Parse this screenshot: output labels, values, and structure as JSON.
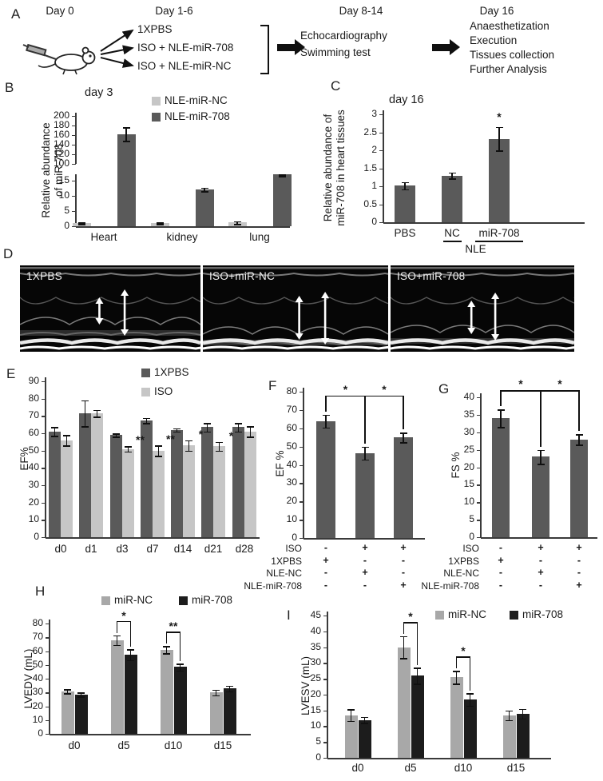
{
  "colors": {
    "dark_gray": "#5a5a5a",
    "light_gray": "#c6c6c6",
    "mid_gray": "#a8a8a8",
    "near_black": "#1c1c1c",
    "error_bar": "#101010"
  },
  "panels": {
    "A": {
      "label": "A",
      "timeline": [
        "Day 0",
        "Day 1-6",
        "Day 8-14",
        "Day 16"
      ],
      "branches": [
        "1XPBS",
        "ISO + NLE-miR-708",
        "ISO + NLE-miR-NC"
      ],
      "week2": [
        "Echocardiography",
        "Swimming test"
      ],
      "day16": [
        "Anaesthetization",
        "Execution",
        "Tissues collection",
        "Further Analysis"
      ]
    },
    "B": {
      "label": "B"
    },
    "C": {
      "label": "C"
    },
    "D": {
      "label": "D",
      "images": [
        {
          "label": "1XPBS"
        },
        {
          "label": "ISO+miR-NC"
        },
        {
          "label": "ISO+miR-708"
        }
      ]
    },
    "E": {
      "label": "E"
    },
    "F": {
      "label": "F"
    },
    "G": {
      "label": "G"
    },
    "H": {
      "label": "H"
    },
    "I": {
      "label": "I"
    }
  },
  "chart_data": [
    {
      "panel": "B",
      "type": "bar",
      "title": "day 3",
      "ylabel": [
        "Relative abundance",
        "of miR-708"
      ],
      "categories": [
        "Heart",
        "kidney",
        "lung"
      ],
      "series": [
        {
          "name": "NLE-miR-NC",
          "color": "light_gray",
          "values": [
            1,
            1,
            1.2
          ],
          "err": [
            0.3,
            0.3,
            0.5
          ]
        },
        {
          "name": "NLE-miR-708",
          "color": "dark_gray",
          "values": [
            162,
            12,
            17
          ],
          "err": [
            14,
            0.6,
            0.5
          ]
        }
      ],
      "axis_break": {
        "lower_range": [
          0,
          17
        ],
        "lower_ticks": [
          0,
          5,
          10,
          15
        ],
        "upper_range": [
          100,
          200
        ],
        "upper_ticks": [
          100,
          120,
          140,
          160,
          180,
          200
        ]
      },
      "legend": [
        "NLE-miR-NC",
        "NLE-miR-708"
      ]
    },
    {
      "panel": "C",
      "type": "bar",
      "title": "day 16",
      "ylabel": [
        "Relative abundance of",
        "miR-708 in heart tissues"
      ],
      "categories": [
        "PBS",
        "NC",
        "miR-708"
      ],
      "series": [
        {
          "name": "",
          "color": "dark_gray",
          "values": [
            1.02,
            1.3,
            2.32
          ],
          "err": [
            0.1,
            0.08,
            0.33
          ]
        }
      ],
      "ylim": [
        0,
        3
      ],
      "yticks": [
        0,
        0.5,
        1,
        1.5,
        2,
        2.5,
        3
      ],
      "sig_stars": [
        {
          "cat": "miR-708",
          "series": 0,
          "text": "*"
        }
      ],
      "group_label": {
        "text": "NLE",
        "from": 1,
        "to": 2
      }
    },
    {
      "panel": "E",
      "type": "bar",
      "ylabel": [
        "EF%"
      ],
      "categories": [
        "d0",
        "d1",
        "d3",
        "d7",
        "d14",
        "d21",
        "d28"
      ],
      "series": [
        {
          "name": "1XPBS",
          "color": "dark_gray",
          "values": [
            61,
            71.5,
            59,
            67.5,
            62,
            63.5,
            63.5
          ],
          "err": [
            2.5,
            7.5,
            1,
            1.5,
            1,
            2.5,
            2.5
          ]
        },
        {
          "name": "ISO",
          "color": "light_gray",
          "values": [
            56,
            71.5,
            51,
            50,
            53,
            52.5,
            61
          ],
          "err": [
            3,
            2,
            1.5,
            3,
            3,
            2.5,
            3
          ]
        }
      ],
      "ylim": [
        0,
        90
      ],
      "yticks": [
        0,
        10,
        20,
        30,
        40,
        50,
        60,
        70,
        80,
        90
      ],
      "sig_stars": [
        {
          "cat": "d3",
          "series": 1,
          "text": "**"
        },
        {
          "cat": "d7",
          "series": 1,
          "text": "**"
        },
        {
          "cat": "d14",
          "series": 1,
          "text": "*"
        },
        {
          "cat": "d21",
          "series": 1,
          "text": "*"
        }
      ],
      "legend": [
        "1XPBS",
        "ISO"
      ]
    },
    {
      "panel": "F",
      "type": "bar",
      "ylabel": [
        "EF %"
      ],
      "categories": [
        "",
        "",
        ""
      ],
      "series": [
        {
          "name": "",
          "color": "dark_gray",
          "values": [
            64,
            46.5,
            55
          ],
          "err": [
            3.5,
            3.5,
            2.5
          ]
        }
      ],
      "ylim": [
        0,
        80
      ],
      "yticks": [
        0,
        10,
        20,
        30,
        40,
        50,
        60,
        70,
        80
      ],
      "sig_brackets": [
        {
          "a": 0,
          "b": 1,
          "text": "*"
        },
        {
          "a": 1,
          "b": 2,
          "text": "*"
        }
      ],
      "conditions": [
        {
          "label": "ISO",
          "symbols": [
            "-",
            "+",
            "+"
          ]
        },
        {
          "label": "1XPBS",
          "symbols": [
            "+",
            "-",
            "-"
          ]
        },
        {
          "label": "NLE-NC",
          "symbols": [
            "-",
            "+",
            "-"
          ]
        },
        {
          "label": "NLE-miR-708",
          "symbols": [
            "-",
            "-",
            "+"
          ]
        }
      ]
    },
    {
      "panel": "G",
      "type": "bar",
      "ylabel": [
        "FS %"
      ],
      "categories": [
        "",
        "",
        ""
      ],
      "series": [
        {
          "name": "",
          "color": "dark_gray",
          "values": [
            34,
            23,
            28
          ],
          "err": [
            2.5,
            2,
            1.5
          ]
        }
      ],
      "ylim": [
        0,
        40
      ],
      "yticks": [
        0,
        5,
        10,
        15,
        20,
        25,
        30,
        35,
        40
      ],
      "sig_brackets": [
        {
          "a": 0,
          "b": 1,
          "text": "*"
        },
        {
          "a": 1,
          "b": 2,
          "text": "*"
        }
      ],
      "conditions": [
        {
          "label": "ISO",
          "symbols": [
            "-",
            "+",
            "+"
          ]
        },
        {
          "label": "1XPBS",
          "symbols": [
            "+",
            "-",
            "-"
          ]
        },
        {
          "label": "NLE-NC",
          "symbols": [
            "-",
            "+",
            "-"
          ]
        },
        {
          "label": "NLE-miR-708",
          "symbols": [
            "-",
            "-",
            "+"
          ]
        }
      ]
    },
    {
      "panel": "H",
      "type": "bar",
      "ylabel": [
        "LVEDV (mL)"
      ],
      "categories": [
        "d0",
        "d5",
        "d10",
        "d15"
      ],
      "series": [
        {
          "name": "miR-NC",
          "color": "mid_gray",
          "values": [
            31,
            68,
            61,
            30
          ],
          "err": [
            1.5,
            3.5,
            2.5,
            2
          ]
        },
        {
          "name": "miR-708",
          "color": "near_black",
          "values": [
            28.5,
            57.5,
            48.5,
            33
          ],
          "err": [
            1.5,
            4,
            2.5,
            2
          ]
        }
      ],
      "ylim": [
        0,
        80
      ],
      "yticks": [
        0,
        10,
        20,
        30,
        40,
        50,
        60,
        70,
        80
      ],
      "sig_brackets": [
        {
          "cat": "d5",
          "text": "*"
        },
        {
          "cat": "d10",
          "text": "**"
        }
      ],
      "legend": [
        "miR-NC",
        "miR-708"
      ]
    },
    {
      "panel": "I",
      "type": "bar",
      "ylabel": [
        "LVESV (mL)"
      ],
      "categories": [
        "d0",
        "d5",
        "d10",
        "d15"
      ],
      "series": [
        {
          "name": "miR-NC",
          "color": "mid_gray",
          "values": [
            13.5,
            35,
            25.5,
            13.5
          ],
          "err": [
            1.8,
            3.5,
            2,
            1.5
          ]
        },
        {
          "name": "miR-708",
          "color": "near_black",
          "values": [
            12,
            26,
            18.5,
            14
          ],
          "err": [
            1,
            2.5,
            2,
            1.5
          ]
        }
      ],
      "ylim": [
        0,
        45
      ],
      "yticks": [
        0,
        5,
        10,
        15,
        20,
        25,
        30,
        35,
        40,
        45
      ],
      "sig_brackets": [
        {
          "cat": "d5",
          "text": "*"
        },
        {
          "cat": "d10",
          "text": "*"
        }
      ],
      "legend": [
        "miR-NC",
        "miR-708"
      ]
    }
  ]
}
